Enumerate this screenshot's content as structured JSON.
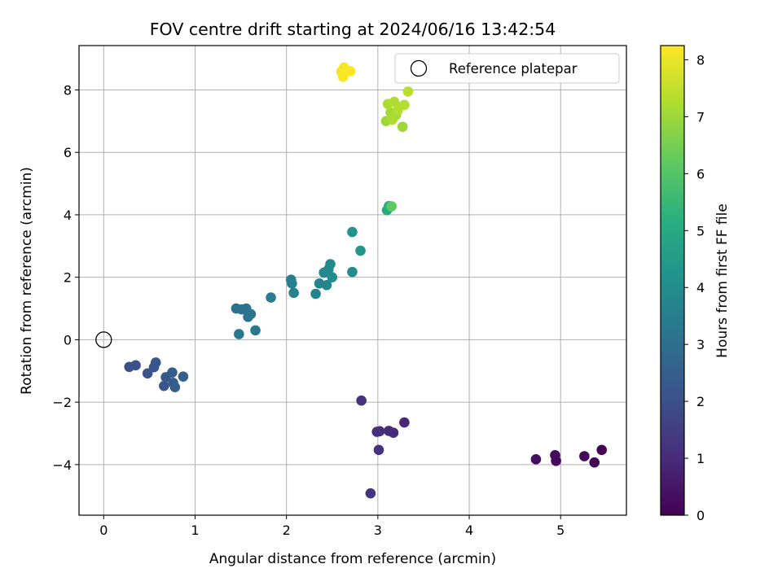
{
  "chart_data": {
    "type": "scatter",
    "title": "FOV centre drift starting at 2024/06/16 13:42:54",
    "xlabel": "Angular distance from reference (arcmin)",
    "ylabel": "Rotation from reference (arcmin)",
    "xlim": [
      -0.27,
      5.72
    ],
    "ylim": [
      -5.62,
      9.42
    ],
    "xticks": [
      0,
      1,
      2,
      3,
      4,
      5
    ],
    "yticks": [
      -4,
      -2,
      0,
      2,
      4,
      6,
      8
    ],
    "xtick_labels": [
      "0",
      "1",
      "2",
      "3",
      "4",
      "5"
    ],
    "ytick_labels": [
      "−4",
      "−2",
      "0",
      "2",
      "4",
      "6",
      "8"
    ],
    "grid": true,
    "colormap": "viridis",
    "colorbar": {
      "label": "Hours from first FF file",
      "range": [
        0,
        8.25
      ],
      "ticks": [
        0,
        1,
        2,
        3,
        4,
        5,
        6,
        7,
        8
      ],
      "tick_labels": [
        "0",
        "1",
        "2",
        "3",
        "4",
        "5",
        "6",
        "7",
        "8"
      ]
    },
    "legend": {
      "position": "top-right",
      "entries": [
        "Reference platepar"
      ]
    },
    "reference_point": {
      "x": 0,
      "y": 0
    },
    "points": [
      {
        "x": 5.45,
        "y": -3.53,
        "c": 0.05
      },
      {
        "x": 5.37,
        "y": -3.93,
        "c": 0.1
      },
      {
        "x": 5.26,
        "y": -3.73,
        "c": 0.15
      },
      {
        "x": 4.94,
        "y": -3.7,
        "c": 0.2
      },
      {
        "x": 4.95,
        "y": -3.88,
        "c": 0.25
      },
      {
        "x": 4.73,
        "y": -3.83,
        "c": 0.3
      },
      {
        "x": 3.29,
        "y": -2.65,
        "c": 0.9
      },
      {
        "x": 3.17,
        "y": -2.98,
        "c": 0.95
      },
      {
        "x": 3.12,
        "y": -2.92,
        "c": 1.0
      },
      {
        "x": 3.02,
        "y": -2.93,
        "c": 1.05
      },
      {
        "x": 2.99,
        "y": -2.95,
        "c": 1.1
      },
      {
        "x": 3.01,
        "y": -3.53,
        "c": 1.15
      },
      {
        "x": 2.82,
        "y": -1.95,
        "c": 1.2
      },
      {
        "x": 2.92,
        "y": -4.92,
        "c": 1.25
      },
      {
        "x": 0.28,
        "y": -0.87,
        "c": 2.0
      },
      {
        "x": 0.35,
        "y": -0.82,
        "c": 2.05
      },
      {
        "x": 0.48,
        "y": -1.08,
        "c": 2.1
      },
      {
        "x": 0.55,
        "y": -0.88,
        "c": 2.15
      },
      {
        "x": 0.57,
        "y": -0.73,
        "c": 2.2
      },
      {
        "x": 0.66,
        "y": -1.48,
        "c": 2.25
      },
      {
        "x": 0.68,
        "y": -1.2,
        "c": 2.3
      },
      {
        "x": 0.75,
        "y": -1.05,
        "c": 2.35
      },
      {
        "x": 0.76,
        "y": -1.38,
        "c": 2.4
      },
      {
        "x": 0.78,
        "y": -1.52,
        "c": 2.45
      },
      {
        "x": 0.87,
        "y": -1.18,
        "c": 2.5
      },
      {
        "x": 1.45,
        "y": 1.0,
        "c": 3.0
      },
      {
        "x": 1.51,
        "y": 0.97,
        "c": 3.05
      },
      {
        "x": 1.56,
        "y": 1.0,
        "c": 3.1
      },
      {
        "x": 1.58,
        "y": 0.73,
        "c": 3.15
      },
      {
        "x": 1.61,
        "y": 0.82,
        "c": 3.2
      },
      {
        "x": 1.48,
        "y": 0.18,
        "c": 3.25
      },
      {
        "x": 1.66,
        "y": 0.3,
        "c": 3.3
      },
      {
        "x": 1.83,
        "y": 1.35,
        "c": 3.4
      },
      {
        "x": 2.05,
        "y": 1.92,
        "c": 3.5
      },
      {
        "x": 2.06,
        "y": 1.8,
        "c": 3.55
      },
      {
        "x": 2.08,
        "y": 1.5,
        "c": 3.6
      },
      {
        "x": 2.32,
        "y": 1.47,
        "c": 3.65
      },
      {
        "x": 2.36,
        "y": 1.8,
        "c": 3.7
      },
      {
        "x": 2.41,
        "y": 2.15,
        "c": 3.75
      },
      {
        "x": 2.44,
        "y": 1.75,
        "c": 3.8
      },
      {
        "x": 2.46,
        "y": 2.25,
        "c": 3.85
      },
      {
        "x": 2.48,
        "y": 2.42,
        "c": 3.9
      },
      {
        "x": 2.5,
        "y": 2.0,
        "c": 3.95
      },
      {
        "x": 2.72,
        "y": 2.17,
        "c": 4.0
      },
      {
        "x": 2.72,
        "y": 3.45,
        "c": 4.2
      },
      {
        "x": 2.81,
        "y": 2.85,
        "c": 4.3
      },
      {
        "x": 3.1,
        "y": 4.15,
        "c": 5.0
      },
      {
        "x": 3.12,
        "y": 4.28,
        "c": 5.2
      },
      {
        "x": 3.15,
        "y": 4.27,
        "c": 6.2
      },
      {
        "x": 3.09,
        "y": 7.0,
        "c": 7.0
      },
      {
        "x": 3.27,
        "y": 6.82,
        "c": 7.0
      },
      {
        "x": 3.2,
        "y": 7.2,
        "c": 7.1
      },
      {
        "x": 3.14,
        "y": 7.28,
        "c": 7.1
      },
      {
        "x": 3.23,
        "y": 7.45,
        "c": 7.15
      },
      {
        "x": 3.16,
        "y": 7.05,
        "c": 7.2
      },
      {
        "x": 3.11,
        "y": 7.55,
        "c": 7.2
      },
      {
        "x": 3.18,
        "y": 7.62,
        "c": 7.25
      },
      {
        "x": 3.29,
        "y": 7.52,
        "c": 7.3
      },
      {
        "x": 3.33,
        "y": 7.95,
        "c": 7.4
      },
      {
        "x": 3.22,
        "y": 7.35,
        "c": 7.3
      },
      {
        "x": 2.6,
        "y": 8.58,
        "c": 8.1
      },
      {
        "x": 2.63,
        "y": 8.72,
        "c": 8.15
      },
      {
        "x": 2.62,
        "y": 8.42,
        "c": 8.2
      },
      {
        "x": 2.7,
        "y": 8.6,
        "c": 8.25
      }
    ]
  }
}
